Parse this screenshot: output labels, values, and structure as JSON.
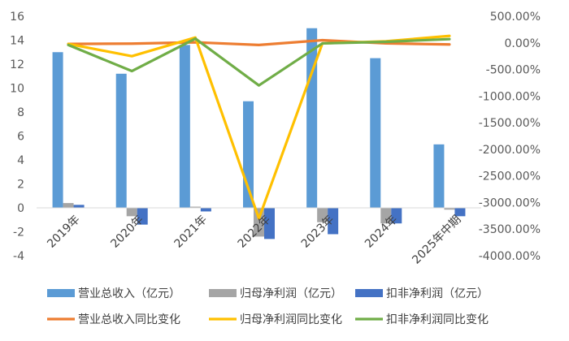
{
  "chart_data": {
    "type": "bar",
    "categories": [
      "2019年",
      "2020年",
      "2021年",
      "2022年",
      "2023年",
      "2024年",
      "2025年中期"
    ],
    "ylim_left": [
      -4,
      16
    ],
    "ylim_right": [
      -4000,
      500
    ],
    "yticks_left": [
      "16",
      "14",
      "12",
      "10",
      "8",
      "6",
      "4",
      "2",
      "0",
      "-2",
      "-4"
    ],
    "yticks_right": [
      "500.00%",
      "0.00%",
      "-500.00%",
      "-1000.00%",
      "-1500.00%",
      "-2000.00%",
      "-2500.00%",
      "-3000.00%",
      "-3500.00%",
      "-4000.00%"
    ],
    "grid": false,
    "legend_position": "bottom",
    "bar_series": [
      {
        "name": "营业总收入（亿元）",
        "color": "#5B9BD5",
        "values": [
          13.0,
          11.2,
          13.6,
          8.9,
          15.0,
          12.5,
          5.3
        ]
      },
      {
        "name": "归母净利润（亿元）",
        "color": "#A5A5A5",
        "values": [
          0.4,
          -0.7,
          0.1,
          -2.4,
          -1.2,
          -1.3,
          -0.15
        ]
      },
      {
        "name": "扣非净利润（亿元）",
        "color": "#4472C4",
        "values": [
          0.25,
          -1.4,
          -0.3,
          -2.6,
          -2.2,
          -1.3,
          -0.7
        ]
      }
    ],
    "line_series": [
      {
        "name": "营业总收入同比变化",
        "color": "#ED7D31",
        "values": [
          -20,
          -15,
          10,
          -40,
          50,
          -10,
          -30
        ]
      },
      {
        "name": "归母净利润同比变化",
        "color": "#FFC000",
        "values": [
          -20,
          -250,
          100,
          -3300,
          -10,
          30,
          130
        ]
      },
      {
        "name": "扣非净利润同比变化",
        "color": "#70AD47",
        "values": [
          -40,
          -530,
          80,
          -800,
          -10,
          20,
          70
        ]
      }
    ]
  }
}
